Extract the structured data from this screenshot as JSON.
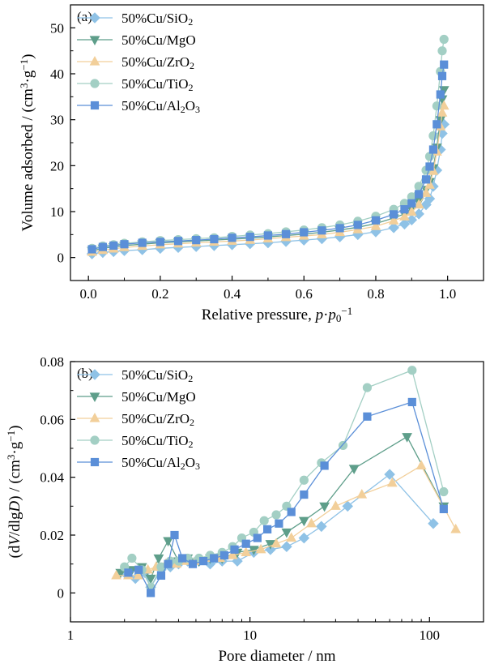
{
  "chart_data": [
    {
      "type": "line",
      "panel_label": "(a)",
      "xlabel_main": "Relative pressure, ",
      "xlabel_italic": "p",
      "xlabel_dot": "·",
      "xlabel_italic2": "p",
      "xlabel_sub": "0",
      "xlabel_sup": "−1",
      "ylabel_main": "Volume adsorbed / (cm",
      "ylabel_sup": "3",
      "ylabel_mid": "·g",
      "ylabel_sup2": "−1",
      "ylabel_end": ")",
      "xlim": [
        -0.05,
        1.1
      ],
      "ylim": [
        -5,
        55
      ],
      "x_ticks": [
        0.0,
        0.2,
        0.4,
        0.6,
        0.8,
        1.0
      ],
      "x_tick_labels": [
        "0.0",
        "0.2",
        "0.4",
        "0.6",
        "0.8",
        "1.0"
      ],
      "y_ticks": [
        0,
        10,
        20,
        30,
        40,
        50
      ],
      "y_tick_labels": [
        "0",
        "10",
        "20",
        "30",
        "40",
        "50"
      ],
      "legend_position": "top-left",
      "series": [
        {
          "name_main": "50%Cu/SiO",
          "name_sub": "2",
          "name_tail": "",
          "color": "#8fc2e6",
          "marker": "diamond",
          "x": [
            0.01,
            0.04,
            0.07,
            0.1,
            0.15,
            0.2,
            0.25,
            0.3,
            0.35,
            0.4,
            0.45,
            0.5,
            0.55,
            0.6,
            0.65,
            0.7,
            0.75,
            0.8,
            0.85,
            0.88,
            0.9,
            0.92,
            0.94,
            0.95,
            0.96,
            0.97,
            0.98,
            0.985,
            0.99
          ],
          "y": [
            0.8,
            1.1,
            1.3,
            1.5,
            1.7,
            2.0,
            2.2,
            2.4,
            2.6,
            2.8,
            3.0,
            3.2,
            3.5,
            3.8,
            4.1,
            4.5,
            5.0,
            5.6,
            6.5,
            7.3,
            8.2,
            9.5,
            11.5,
            12.8,
            15.5,
            19.0,
            23.5,
            27.0,
            29.0
          ]
        },
        {
          "name_main": "50%Cu/MgO",
          "name_sub": "",
          "name_tail": "",
          "color": "#5e9e8a",
          "marker": "triangle-down",
          "x": [
            0.01,
            0.04,
            0.07,
            0.1,
            0.15,
            0.2,
            0.25,
            0.3,
            0.35,
            0.4,
            0.45,
            0.5,
            0.55,
            0.6,
            0.65,
            0.7,
            0.75,
            0.8,
            0.85,
            0.88,
            0.9,
            0.92,
            0.94,
            0.95,
            0.96,
            0.97,
            0.98,
            0.985,
            0.99
          ],
          "y": [
            1.5,
            2.0,
            2.3,
            2.6,
            2.9,
            3.2,
            3.4,
            3.6,
            3.8,
            4.0,
            4.2,
            4.5,
            4.8,
            5.1,
            5.5,
            6.0,
            6.6,
            7.4,
            8.6,
            9.5,
            10.6,
            12.2,
            14.8,
            16.5,
            19.5,
            24.0,
            30.0,
            34.5,
            36.5
          ]
        },
        {
          "name_main": "50%Cu/ZrO",
          "name_sub": "2",
          "name_tail": "",
          "color": "#f2cf9a",
          "marker": "triangle-up",
          "x": [
            0.01,
            0.04,
            0.07,
            0.1,
            0.15,
            0.2,
            0.25,
            0.3,
            0.35,
            0.4,
            0.45,
            0.5,
            0.55,
            0.6,
            0.65,
            0.7,
            0.75,
            0.8,
            0.85,
            0.88,
            0.9,
            0.92,
            0.94,
            0.95,
            0.96,
            0.97,
            0.98,
            0.985,
            0.99
          ],
          "y": [
            1.2,
            1.6,
            1.9,
            2.2,
            2.5,
            2.8,
            3.0,
            3.2,
            3.4,
            3.6,
            3.8,
            4.1,
            4.4,
            4.7,
            5.0,
            5.5,
            6.1,
            6.8,
            8.0,
            8.9,
            9.9,
            11.5,
            14.0,
            15.8,
            18.8,
            23.0,
            28.5,
            31.5,
            33.0
          ]
        },
        {
          "name_main": "50%Cu/TiO",
          "name_sub": "2",
          "name_tail": "",
          "color": "#a3cfc4",
          "marker": "circle",
          "x": [
            0.01,
            0.04,
            0.07,
            0.1,
            0.15,
            0.2,
            0.25,
            0.3,
            0.35,
            0.4,
            0.45,
            0.5,
            0.55,
            0.6,
            0.65,
            0.7,
            0.75,
            0.8,
            0.85,
            0.88,
            0.9,
            0.92,
            0.94,
            0.95,
            0.96,
            0.97,
            0.98,
            0.985,
            0.99
          ],
          "y": [
            2.0,
            2.5,
            2.8,
            3.1,
            3.4,
            3.7,
            3.9,
            4.1,
            4.3,
            4.6,
            4.9,
            5.2,
            5.6,
            6.0,
            6.5,
            7.1,
            7.9,
            9.0,
            10.5,
            11.8,
            13.2,
            15.5,
            19.0,
            22.0,
            26.5,
            33.0,
            40.5,
            45.0,
            47.5
          ]
        },
        {
          "name_main": "50%Cu/Al",
          "name_sub": "2",
          "name_tail": "O",
          "name_sub2": "3",
          "color": "#5b8fd8",
          "marker": "square",
          "x": [
            0.01,
            0.04,
            0.07,
            0.1,
            0.15,
            0.2,
            0.25,
            0.3,
            0.35,
            0.4,
            0.45,
            0.5,
            0.55,
            0.6,
            0.65,
            0.7,
            0.75,
            0.8,
            0.85,
            0.88,
            0.9,
            0.92,
            0.94,
            0.95,
            0.96,
            0.97,
            0.98,
            0.985,
            0.99
          ],
          "y": [
            1.8,
            2.3,
            2.6,
            2.9,
            3.2,
            3.4,
            3.6,
            3.8,
            4.0,
            4.3,
            4.5,
            4.8,
            5.1,
            5.5,
            5.9,
            6.4,
            7.1,
            8.1,
            9.4,
            10.5,
            11.8,
            13.8,
            17.0,
            19.8,
            23.5,
            29.0,
            35.5,
            39.5,
            42.0
          ]
        }
      ]
    },
    {
      "type": "line",
      "panel_label": "(b)",
      "xlabel": "Pore diameter / nm",
      "ylabel_open": "(d",
      "ylabel_italicV": "V",
      "ylabel_slash": "/dlg",
      "ylabel_italicD": "D",
      "ylabel_close": ") / (cm",
      "ylabel_sup": "3",
      "ylabel_mid": "·g",
      "ylabel_sup2": "−1",
      "ylabel_end": ")",
      "x_scale": "log",
      "xlim": [
        1,
        200
      ],
      "ylim": [
        -0.01,
        0.08
      ],
      "x_ticks": [
        1,
        10,
        100
      ],
      "x_tick_labels": [
        "1",
        "10",
        "100"
      ],
      "y_ticks": [
        0,
        0.02,
        0.04,
        0.06,
        0.08
      ],
      "y_tick_labels": [
        "0",
        "0.02",
        "0.04",
        "0.06",
        "0.08"
      ],
      "legend_position": "top-left",
      "series": [
        {
          "name_main": "50%Cu/SiO",
          "name_sub": "2",
          "name_tail": "",
          "color": "#8fc2e6",
          "marker": "diamond",
          "x": [
            2.0,
            2.3,
            2.6,
            2.8,
            3.2,
            3.6,
            4.0,
            4.5,
            5.2,
            6.0,
            7.0,
            8.5,
            10.5,
            13.0,
            16.0,
            20.0,
            25.0,
            35.0,
            60.0,
            105.0
          ],
          "y": [
            0.007,
            0.005,
            0.007,
            0.002,
            0.008,
            0.009,
            0.01,
            0.011,
            0.011,
            0.01,
            0.011,
            0.011,
            0.014,
            0.015,
            0.016,
            0.019,
            0.023,
            0.03,
            0.041,
            0.024
          ]
        },
        {
          "name_main": "50%Cu/MgO",
          "name_sub": "",
          "name_tail": "",
          "color": "#5e9e8a",
          "marker": "triangle-down",
          "x": [
            1.9,
            2.2,
            2.5,
            2.8,
            3.1,
            3.5,
            4.0,
            4.5,
            5.2,
            6.0,
            7.0,
            8.5,
            10.5,
            13.0,
            16.0,
            20.0,
            26.0,
            38.0,
            75.0,
            120.0
          ],
          "y": [
            0.007,
            0.008,
            0.009,
            0.005,
            0.012,
            0.018,
            0.011,
            0.012,
            0.011,
            0.012,
            0.012,
            0.014,
            0.015,
            0.017,
            0.021,
            0.025,
            0.03,
            0.043,
            0.054,
            0.03
          ]
        },
        {
          "name_main": "50%Cu/ZrO",
          "name_sub": "2",
          "name_tail": "",
          "color": "#f2cf9a",
          "marker": "triangle-up",
          "x": [
            1.8,
            2.1,
            2.4,
            2.7,
            3.0,
            3.4,
            3.9,
            4.4,
            5.0,
            5.8,
            6.8,
            8.0,
            9.5,
            11.5,
            14.0,
            17.0,
            22.0,
            30.0,
            42.0,
            62.0,
            90.0,
            140.0
          ],
          "y": [
            0.006,
            0.006,
            0.006,
            0.008,
            0.009,
            0.01,
            0.01,
            0.011,
            0.011,
            0.012,
            0.012,
            0.013,
            0.014,
            0.015,
            0.017,
            0.019,
            0.024,
            0.03,
            0.034,
            0.038,
            0.044,
            0.022
          ]
        },
        {
          "name_main": "50%Cu/TiO",
          "name_sub": "2",
          "name_tail": "",
          "color": "#a3cfc4",
          "marker": "circle",
          "x": [
            2.0,
            2.2,
            2.5,
            2.8,
            3.2,
            3.6,
            4.0,
            4.5,
            5.2,
            6.0,
            7.0,
            8.0,
            9.0,
            10.5,
            12.0,
            14.0,
            16.0,
            20.0,
            25.0,
            33.0,
            45.0,
            80.0,
            120.0
          ],
          "y": [
            0.009,
            0.012,
            0.008,
            0.002,
            0.009,
            0.011,
            0.011,
            0.012,
            0.012,
            0.013,
            0.014,
            0.016,
            0.019,
            0.021,
            0.025,
            0.027,
            0.03,
            0.039,
            0.045,
            0.051,
            0.071,
            0.077,
            0.035
          ]
        },
        {
          "name_main": "50%Cu/Al",
          "name_sub": "2",
          "name_tail": "O",
          "name_sub2": "3",
          "color": "#5b8fd8",
          "marker": "square",
          "x": [
            2.1,
            2.4,
            2.8,
            3.2,
            3.5,
            3.8,
            4.2,
            4.8,
            5.5,
            6.3,
            7.2,
            8.2,
            9.5,
            11.0,
            12.5,
            14.5,
            17.0,
            20.0,
            26.0,
            45.0,
            80.0,
            120.0
          ],
          "y": [
            0.007,
            0.008,
            0.0,
            0.006,
            0.01,
            0.02,
            0.012,
            0.01,
            0.011,
            0.012,
            0.013,
            0.015,
            0.017,
            0.019,
            0.022,
            0.024,
            0.028,
            0.034,
            0.044,
            0.061,
            0.066,
            0.029
          ]
        }
      ]
    }
  ]
}
